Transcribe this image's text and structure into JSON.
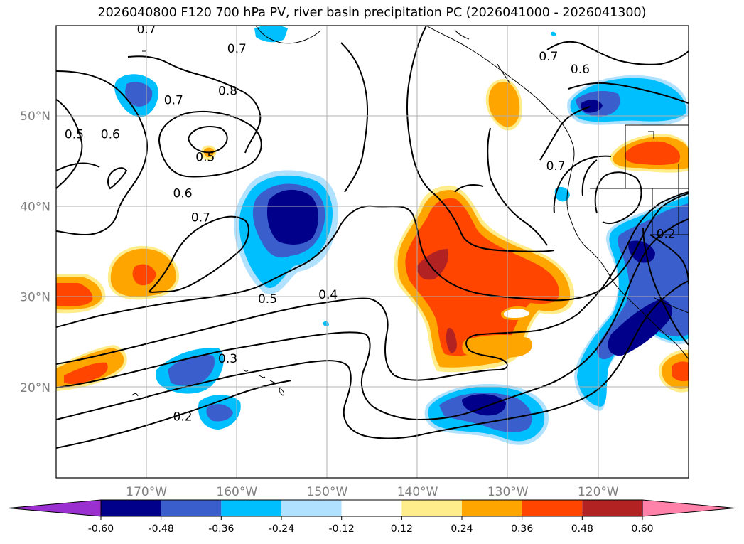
{
  "title": "2026040800 F120 700 hPa PV, river basin precipitation PC (2026041000 - 2026041300)",
  "map": {
    "projection": "PlateCarree",
    "lon_range": [
      -180,
      -110
    ],
    "lat_range": [
      10,
      60
    ],
    "gridlines": true,
    "lat_ticks": [
      {
        "value": 20,
        "label": "20°N"
      },
      {
        "value": 30,
        "label": "30°N"
      },
      {
        "value": 40,
        "label": "40°N"
      },
      {
        "value": 50,
        "label": "50°N"
      }
    ],
    "lon_ticks": [
      {
        "value": -170,
        "label": "170°W"
      },
      {
        "value": -160,
        "label": "160°W"
      },
      {
        "value": -150,
        "label": "150°W"
      },
      {
        "value": -140,
        "label": "140°W"
      },
      {
        "value": -130,
        "label": "130°W"
      },
      {
        "value": -120,
        "label": "120°W"
      }
    ]
  },
  "contour_labels": [
    {
      "text": "0.7",
      "lon": -170.0,
      "lat": 59.6
    },
    {
      "text": "0.7",
      "lon": -160.0,
      "lat": 57.5
    },
    {
      "text": "0.8",
      "lon": -161.0,
      "lat": 52.8
    },
    {
      "text": "0.7",
      "lon": -167.0,
      "lat": 51.8
    },
    {
      "text": "0.5",
      "lon": -178.0,
      "lat": 48.0
    },
    {
      "text": "0.6",
      "lon": -174.0,
      "lat": 48.0
    },
    {
      "text": "0.5",
      "lon": -163.5,
      "lat": 45.5
    },
    {
      "text": "0.6",
      "lon": -166.0,
      "lat": 41.5
    },
    {
      "text": "0.7",
      "lon": -164.0,
      "lat": 38.8
    },
    {
      "text": "0.5",
      "lon": -156.6,
      "lat": 29.8
    },
    {
      "text": "0.4",
      "lon": -149.9,
      "lat": 30.3
    },
    {
      "text": "0.3",
      "lon": -161.0,
      "lat": 23.2
    },
    {
      "text": "0.2",
      "lon": -166.0,
      "lat": 16.8
    },
    {
      "text": "0.7",
      "lon": -125.5,
      "lat": 56.6
    },
    {
      "text": "0.6",
      "lon": -122.0,
      "lat": 55.2
    },
    {
      "text": "0.7",
      "lon": -124.7,
      "lat": 44.5
    },
    {
      "text": "0.2",
      "lon": -112.5,
      "lat": 37.0
    }
  ],
  "colorbar": {
    "levels": [
      "-0.60",
      "-0.48",
      "-0.36",
      "-0.24",
      "-0.12",
      "0.12",
      "0.24",
      "0.36",
      "0.48",
      "0.60"
    ],
    "colors": [
      "#9b30d0",
      "#00008b",
      "#3a5fcd",
      "#00bfff",
      "#b0e2ff",
      "#ffffff",
      "#ffec8b",
      "#ffa500",
      "#ff4500",
      "#b22222",
      "#ff82ab"
    ],
    "extend": "both"
  },
  "precip_colors": {
    "dark_blue": "#00008b",
    "mid_blue": "#3a5fcd",
    "light_blue": "#00bfff",
    "pale_blue": "#b0e2ff",
    "yellow": "#ffec8b",
    "orange": "#ffa500",
    "red_orange": "#ff4500",
    "dark_red": "#b22222"
  }
}
